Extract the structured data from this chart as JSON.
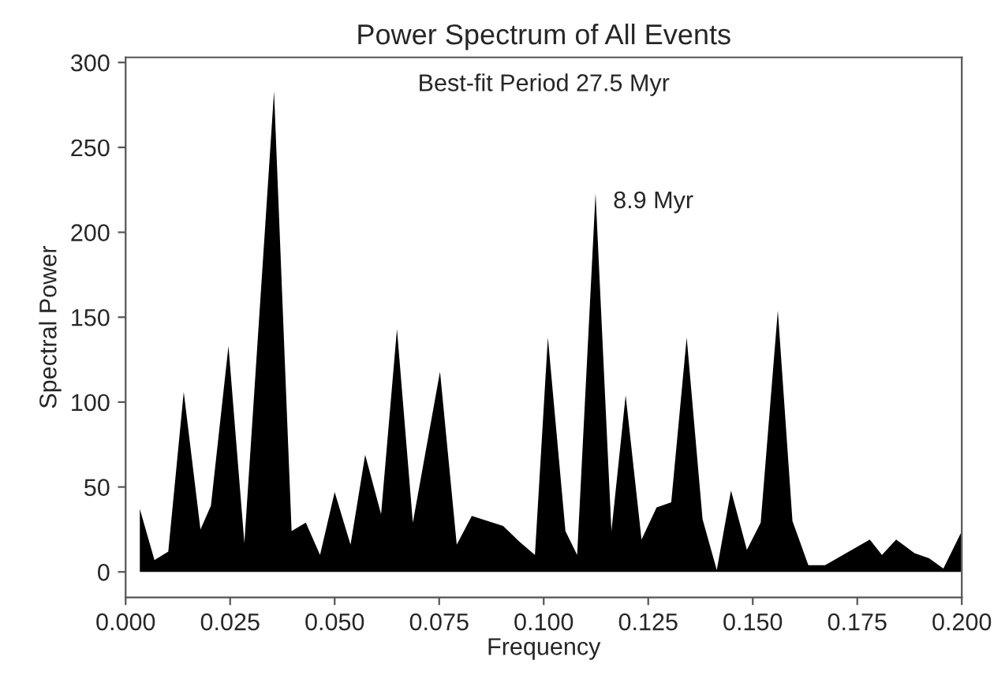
{
  "chart_data": {
    "type": "area",
    "title": "Power Spectrum of All Events",
    "xlabel": "Frequency",
    "ylabel": "Spectral Power",
    "x": [
      0.0034,
      0.0069,
      0.0102,
      0.0139,
      0.0179,
      0.0204,
      0.0246,
      0.0284,
      0.0355,
      0.0397,
      0.0431,
      0.0465,
      0.05,
      0.0538,
      0.0573,
      0.0611,
      0.0649,
      0.0687,
      0.0752,
      0.0792,
      0.0828,
      0.0903,
      0.0941,
      0.0979,
      0.101,
      0.1052,
      0.108,
      0.1124,
      0.1162,
      0.1196,
      0.1234,
      0.127,
      0.1305,
      0.1342,
      0.138,
      0.1414,
      0.1448,
      0.1486,
      0.1519,
      0.156,
      0.1595,
      0.1633,
      0.1673,
      0.178,
      0.1809,
      0.1843,
      0.1887,
      0.1922,
      0.1956,
      0.1998
    ],
    "series": [
      {
        "color": "#000000",
        "values": [
          37,
          7,
          12,
          106,
          25,
          39,
          133,
          17,
          283,
          24,
          29,
          10,
          47,
          16,
          69,
          34,
          143,
          29,
          118,
          16,
          33,
          27,
          18,
          10,
          138,
          24,
          10,
          223,
          24,
          104,
          19,
          38,
          41,
          138,
          31,
          1,
          48,
          13,
          29,
          154,
          30,
          4,
          4,
          19,
          10,
          19,
          11,
          8,
          2,
          23
        ]
      }
    ],
    "annotations": [
      "Best-fit Period 27.5 Myr",
      {
        "text": "8.9 Myr",
        "x": 0.1124,
        "y": 223
      }
    ],
    "xlim": [
      0,
      0.2
    ],
    "ylim": [
      -15,
      303
    ],
    "xticks": [
      {
        "value": 0,
        "label": "0.000"
      },
      0.025,
      {
        "value": 0.05,
        "label": "0.050"
      },
      0.075,
      {
        "value": 0.1,
        "label": "0.100"
      },
      0.125,
      {
        "value": 0.15,
        "label": "0.150"
      },
      0.175,
      {
        "value": 0.2,
        "label": "0.200"
      }
    ],
    "yticks": [
      0,
      50,
      100,
      150,
      200,
      250,
      300
    ],
    "grid": false
  }
}
